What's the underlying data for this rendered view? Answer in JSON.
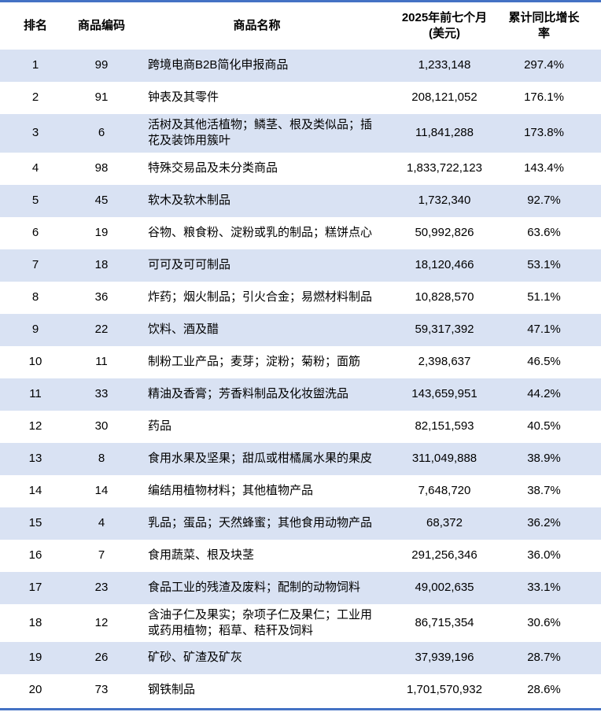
{
  "colors": {
    "accent_blue": "#4472C4",
    "row_shade": "#D9E2F3",
    "text": "#000000"
  },
  "chart_data": {
    "type": "table",
    "title": "",
    "legend": "none",
    "grid": "banded-rows",
    "columns": [
      "排名",
      "商品编码",
      "商品名称",
      "2025年前七个月\n(美元)",
      "累计同比增长率"
    ],
    "rows": [
      {
        "rank": "1",
        "code": "99",
        "name": "跨境电商B2B简化申报商品",
        "amount": "1,233,148",
        "growth": "297.4%"
      },
      {
        "rank": "2",
        "code": "91",
        "name": "钟表及其零件",
        "amount": "208,121,052",
        "growth": "176.1%"
      },
      {
        "rank": "3",
        "code": "6",
        "name": "活树及其他活植物；鳞茎、根及类似品；插花及装饰用簇叶",
        "amount": "11,841,288",
        "growth": "173.8%"
      },
      {
        "rank": "4",
        "code": "98",
        "name": "特殊交易品及未分类商品",
        "amount": "1,833,722,123",
        "growth": "143.4%"
      },
      {
        "rank": "5",
        "code": "45",
        "name": "软木及软木制品",
        "amount": "1,732,340",
        "growth": "92.7%"
      },
      {
        "rank": "6",
        "code": "19",
        "name": "谷物、粮食粉、淀粉或乳的制品；糕饼点心",
        "amount": "50,992,826",
        "growth": "63.6%"
      },
      {
        "rank": "7",
        "code": "18",
        "name": "可可及可可制品",
        "amount": "18,120,466",
        "growth": "53.1%"
      },
      {
        "rank": "8",
        "code": "36",
        "name": "炸药；烟火制品；引火合金；易燃材料制品",
        "amount": "10,828,570",
        "growth": "51.1%"
      },
      {
        "rank": "9",
        "code": "22",
        "name": "饮料、酒及醋",
        "amount": "59,317,392",
        "growth": "47.1%"
      },
      {
        "rank": "10",
        "code": "11",
        "name": "制粉工业产品；麦芽；淀粉；菊粉；面筋",
        "amount": "2,398,637",
        "growth": "46.5%"
      },
      {
        "rank": "11",
        "code": "33",
        "name": "精油及香膏；芳香料制品及化妆盥洗品",
        "amount": "143,659,951",
        "growth": "44.2%"
      },
      {
        "rank": "12",
        "code": "30",
        "name": "药品",
        "amount": "82,151,593",
        "growth": "40.5%"
      },
      {
        "rank": "13",
        "code": "8",
        "name": "食用水果及坚果；甜瓜或柑橘属水果的果皮",
        "amount": "311,049,888",
        "growth": "38.9%"
      },
      {
        "rank": "14",
        "code": "14",
        "name": "编结用植物材料；其他植物产品",
        "amount": "7,648,720",
        "growth": "38.7%"
      },
      {
        "rank": "15",
        "code": "4",
        "name": "乳品；蛋品；天然蜂蜜；其他食用动物产品",
        "amount": "68,372",
        "growth": "36.2%"
      },
      {
        "rank": "16",
        "code": "7",
        "name": "食用蔬菜、根及块茎",
        "amount": "291,256,346",
        "growth": "36.0%"
      },
      {
        "rank": "17",
        "code": "23",
        "name": "食品工业的残渣及废料；配制的动物饲料",
        "amount": "49,002,635",
        "growth": "33.1%"
      },
      {
        "rank": "18",
        "code": "12",
        "name": "含油子仁及果实；杂项子仁及果仁；工业用或药用植物；稻草、秸秆及饲料",
        "amount": "86,715,354",
        "growth": "30.6%"
      },
      {
        "rank": "19",
        "code": "26",
        "name": "矿砂、矿渣及矿灰",
        "amount": "37,939,196",
        "growth": "28.7%"
      },
      {
        "rank": "20",
        "code": "73",
        "name": "钢铁制品",
        "amount": "1,701,570,932",
        "growth": "28.6%"
      }
    ]
  }
}
